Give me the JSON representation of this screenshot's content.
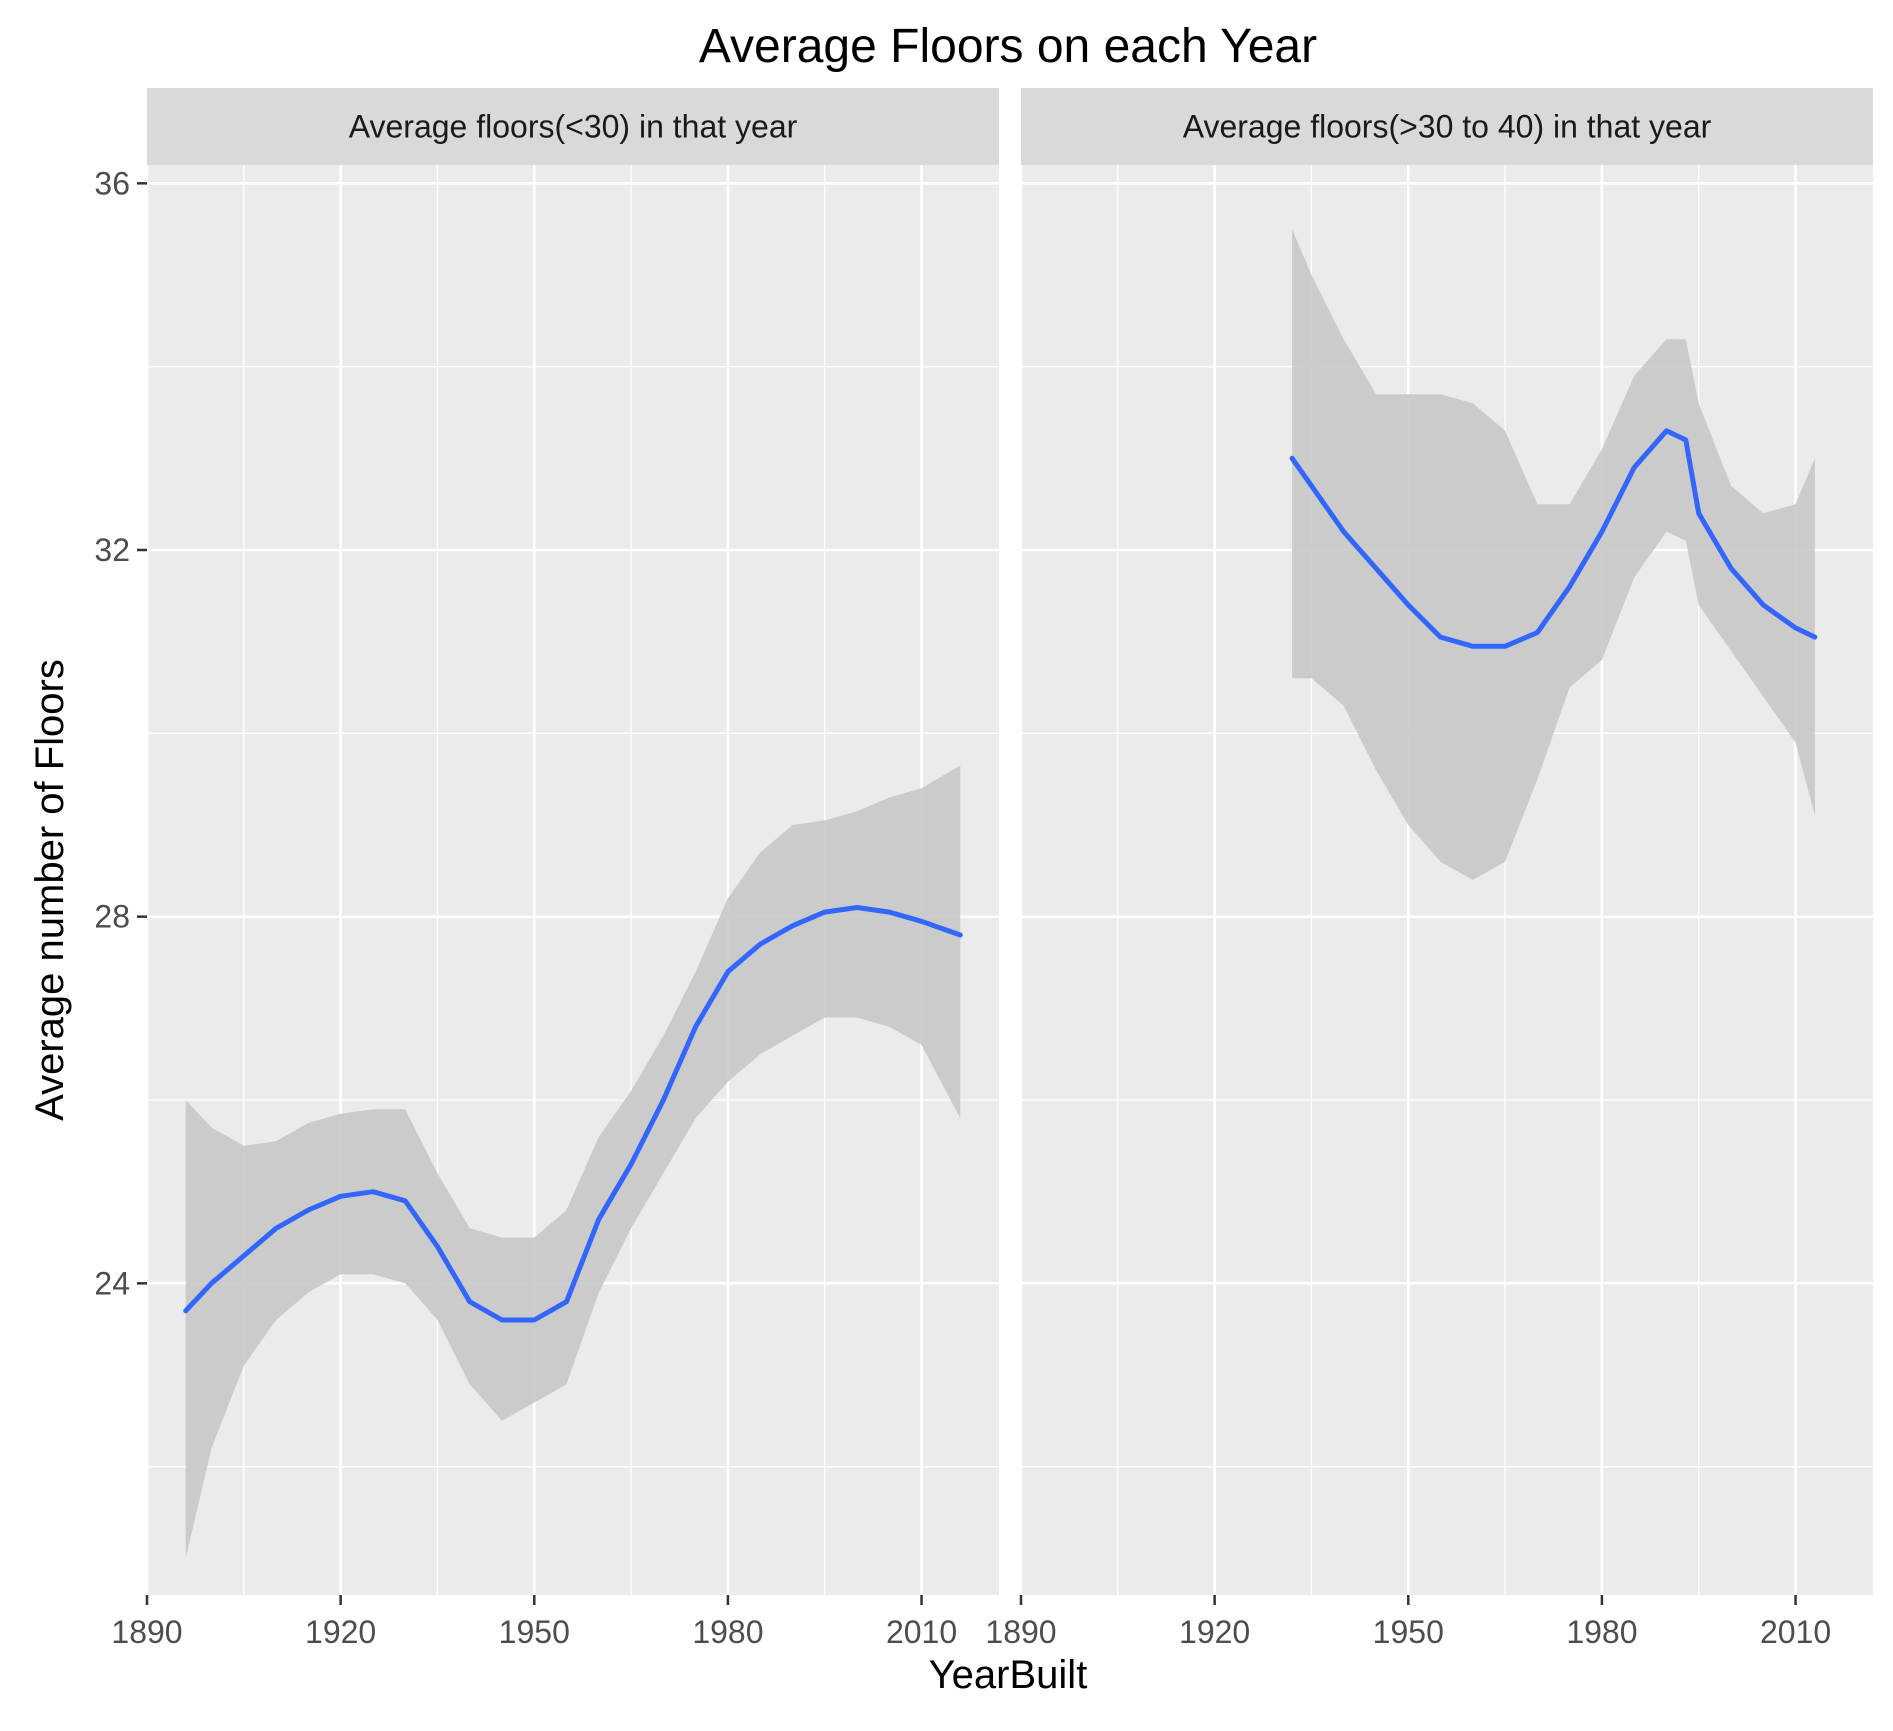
{
  "chart_data": {
    "type": "line",
    "title": "Average Floors on each Year",
    "xlabel": "YearBuilt",
    "ylabel": "Average number of Floors",
    "xlim": [
      1890,
      2022
    ],
    "ylim": [
      20.6,
      36.2
    ],
    "x_ticks": [
      1890,
      1920,
      1950,
      1980,
      2010
    ],
    "y_ticks": [
      24,
      28,
      32,
      36
    ],
    "grid": true,
    "legend": "none",
    "line_color": "#3366FF",
    "ribbon_color": "#c8c8c8",
    "panel_background": "#EBEBEB",
    "strip_background": "#D9D9D9",
    "panels": [
      {
        "strip_label": "Average floors(<30) in that year",
        "x": [
          1896,
          1900,
          1905,
          1910,
          1915,
          1920,
          1925,
          1930,
          1935,
          1940,
          1945,
          1950,
          1955,
          1960,
          1965,
          1970,
          1975,
          1980,
          1985,
          1990,
          1995,
          2000,
          2005,
          2010,
          2016
        ],
        "y": [
          23.7,
          24.0,
          24.3,
          24.6,
          24.8,
          24.95,
          25.0,
          24.9,
          24.4,
          23.8,
          23.6,
          23.6,
          23.8,
          24.7,
          25.3,
          26.0,
          26.8,
          27.4,
          27.7,
          27.9,
          28.05,
          28.1,
          28.05,
          27.95,
          27.8
        ],
        "lower": [
          21.0,
          22.2,
          23.1,
          23.6,
          23.9,
          24.1,
          24.1,
          24.0,
          23.6,
          22.9,
          22.5,
          22.7,
          22.9,
          23.9,
          24.6,
          25.2,
          25.8,
          26.2,
          26.5,
          26.7,
          26.9,
          26.9,
          26.8,
          26.6,
          25.8
        ],
        "upper": [
          26.0,
          25.7,
          25.5,
          25.55,
          25.75,
          25.85,
          25.9,
          25.9,
          25.2,
          24.6,
          24.5,
          24.5,
          24.8,
          25.6,
          26.1,
          26.7,
          27.4,
          28.2,
          28.7,
          29.0,
          29.05,
          29.15,
          29.3,
          29.4,
          29.65
        ]
      },
      {
        "strip_label": "Average floors(>30 to 40) in that year",
        "x": [
          1932,
          1935,
          1940,
          1945,
          1950,
          1955,
          1960,
          1965,
          1970,
          1975,
          1980,
          1985,
          1990,
          1993,
          1995,
          2000,
          2005,
          2010,
          2013
        ],
        "y": [
          33.0,
          32.7,
          32.2,
          31.8,
          31.4,
          31.05,
          30.95,
          30.95,
          31.1,
          31.6,
          32.2,
          32.9,
          33.3,
          33.2,
          32.4,
          31.8,
          31.4,
          31.15,
          31.05
        ],
        "lower": [
          30.6,
          30.6,
          30.3,
          29.6,
          29.0,
          28.6,
          28.4,
          28.6,
          29.5,
          30.5,
          30.8,
          31.7,
          32.2,
          32.1,
          31.4,
          30.9,
          30.4,
          29.9,
          29.1
        ],
        "upper": [
          35.5,
          35.0,
          34.3,
          33.7,
          33.7,
          33.7,
          33.6,
          33.3,
          32.5,
          32.5,
          33.1,
          33.9,
          34.3,
          34.3,
          33.6,
          32.7,
          32.4,
          32.5,
          33.0
        ]
      }
    ]
  }
}
